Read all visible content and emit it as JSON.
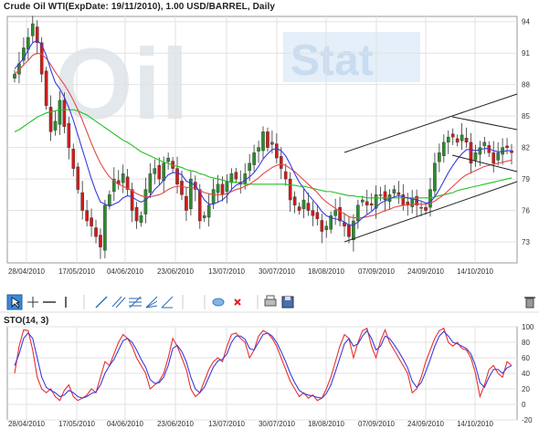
{
  "header": {
    "main_title": "Crude Oil WTI(ExpDate: 19/11/2010), 1.00 USD/BARREL, Daily",
    "sto_title": "STO(14, 3)"
  },
  "watermark": {
    "text1": "Oil",
    "text2": "Stat"
  },
  "toolbar": {
    "tools": [
      {
        "name": "pointer-tool-icon",
        "label": "pointer",
        "selected": true
      },
      {
        "name": "crosshair-tool-icon",
        "label": "crosshair"
      },
      {
        "name": "horizontal-line-tool-icon",
        "label": "horizontal line"
      },
      {
        "name": "vertical-line-tool-icon",
        "label": "vertical line"
      },
      {
        "name": "trend-line-tool-icon",
        "label": "trend line"
      },
      {
        "name": "parallel-lines-tool-icon",
        "label": "parallel lines"
      },
      {
        "name": "fibonacci-retracement-tool-icon",
        "label": "fibonacci"
      },
      {
        "name": "fan-tool-icon",
        "label": "fan"
      },
      {
        "name": "arc-tool-icon",
        "label": "arc"
      },
      {
        "name": "speech-bubble-icon",
        "label": "annotation"
      },
      {
        "name": "delete-x-icon",
        "label": "delete"
      },
      {
        "name": "print-icon",
        "label": "print"
      },
      {
        "name": "save-icon",
        "label": "save"
      },
      {
        "name": "trash-icon",
        "label": "clear"
      }
    ]
  },
  "chart_data": [
    {
      "type": "candlestick",
      "title": "Crude Oil WTI(ExpDate: 19/11/2010), 1.00 USD/BARREL, Daily",
      "x_tick_labels": [
        "28/04/2010",
        "17/05/2010",
        "04/06/2010",
        "23/06/2010",
        "13/07/2010",
        "30/07/2010",
        "18/08/2010",
        "07/09/2010",
        "24/09/2010",
        "14/10/2010"
      ],
      "y_ticks": [
        73,
        76,
        79,
        82,
        85,
        88,
        91,
        94
      ],
      "ylim": [
        71,
        94.5
      ],
      "candle_colors": {
        "up": "#2e8b2e",
        "down": "#d21b1b"
      },
      "series_colors": {
        "ma_fast": "#3a3adf",
        "ma_mid": "#e04a4a",
        "ma_slow": "#22c022"
      },
      "grid": true,
      "closes": [
        89.0,
        90.0,
        91.5,
        92.5,
        93.8,
        92.0,
        89.0,
        86.0,
        83.5,
        84.5,
        86.5,
        84.0,
        82.0,
        80.0,
        78.0,
        76.0,
        75.0,
        74.5,
        73.5,
        72.5,
        76.5,
        77.5,
        79.0,
        78.5,
        79.5,
        78.0,
        76.0,
        75.0,
        75.5,
        78.0,
        79.5,
        80.0,
        79.0,
        80.5,
        81.0,
        80.0,
        78.5,
        77.5,
        76.0,
        79.0,
        78.0,
        75.0,
        75.5,
        76.5,
        78.0,
        78.5,
        77.5,
        78.8,
        79.5,
        79.0,
        78.5,
        79.5,
        80.5,
        81.5,
        82.0,
        83.5,
        82.0,
        82.5,
        81.0,
        80.0,
        79.0,
        77.0,
        76.5,
        76.0,
        77.0,
        76.0,
        75.5,
        75.2,
        74.0,
        74.5,
        75.5,
        76.0,
        75.0,
        74.5,
        73.5,
        75.0,
        76.5,
        77.0,
        76.5,
        76.5,
        77.5,
        77.5,
        77.0,
        77.5,
        78.0,
        77.5,
        76.5,
        76.5,
        77.2,
        76.5,
        76.3,
        76.0,
        78.0,
        80.5,
        81.5,
        82.5,
        83.0,
        83.0,
        82.5,
        83.2,
        82.5,
        80.5,
        81.5,
        82.0,
        82.5,
        81.5,
        80.5,
        81.5,
        82.0,
        82.0,
        81.5
      ],
      "ma_fast": [
        89.5,
        90.0,
        90.5,
        91.3,
        92.0,
        92.2,
        91.8,
        90.8,
        89.4,
        88.2,
        87.6,
        86.8,
        85.8,
        84.6,
        83.2,
        81.8,
        80.4,
        79.0,
        77.8,
        76.8,
        76.6,
        76.4,
        76.6,
        76.8,
        77.2,
        77.4,
        77.3,
        77.0,
        76.8,
        77.0,
        77.4,
        78.0,
        78.4,
        78.9,
        79.4,
        79.6,
        79.6,
        79.4,
        78.8,
        78.6,
        78.4,
        77.7,
        77.0,
        76.6,
        76.6,
        76.8,
        77.0,
        77.4,
        78.0,
        78.4,
        78.6,
        78.9,
        79.2,
        79.6,
        80.2,
        80.9,
        81.4,
        81.8,
        81.9,
        81.7,
        81.2,
        80.4,
        79.5,
        78.7,
        78.1,
        77.5,
        77.0,
        76.5,
        75.9,
        75.5,
        75.3,
        75.2,
        75.1,
        74.9,
        74.6,
        74.6,
        74.9,
        75.3,
        75.6,
        75.9,
        76.3,
        76.7,
        76.9,
        77.1,
        77.3,
        77.4,
        77.3,
        77.2,
        77.1,
        77.0,
        76.9,
        76.7,
        76.8,
        77.3,
        78.0,
        78.8,
        79.6,
        80.3,
        80.9,
        81.4,
        81.8,
        81.8,
        81.7,
        81.8,
        81.9,
        81.9,
        81.7,
        81.6,
        81.6,
        81.7,
        81.7
      ],
      "ma_mid": [
        89.0,
        89.4,
        89.9,
        90.3,
        90.8,
        91.0,
        90.9,
        90.5,
        89.9,
        89.2,
        88.6,
        88.0,
        87.3,
        86.5,
        85.6,
        84.6,
        83.5,
        82.4,
        81.4,
        80.5,
        79.8,
        79.2,
        78.8,
        78.5,
        78.3,
        78.1,
        77.9,
        77.6,
        77.4,
        77.3,
        77.3,
        77.4,
        77.5,
        77.7,
        78.0,
        78.2,
        78.3,
        78.3,
        78.2,
        78.2,
        78.1,
        77.9,
        77.7,
        77.6,
        77.5,
        77.5,
        77.5,
        77.6,
        77.8,
        78.0,
        78.1,
        78.3,
        78.5,
        78.8,
        79.1,
        79.5,
        79.8,
        80.1,
        80.3,
        80.4,
        80.3,
        80.0,
        79.7,
        79.3,
        78.9,
        78.5,
        78.1,
        77.7,
        77.2,
        76.8,
        76.5,
        76.2,
        75.9,
        75.7,
        75.4,
        75.3,
        75.3,
        75.3,
        75.4,
        75.5,
        75.6,
        75.8,
        76.0,
        76.1,
        76.3,
        76.4,
        76.5,
        76.5,
        76.6,
        76.6,
        76.6,
        76.6,
        76.7,
        76.9,
        77.2,
        77.5,
        77.9,
        78.3,
        78.7,
        79.1,
        79.4,
        79.6,
        79.8,
        80.0,
        80.2,
        80.3,
        80.4,
        80.5,
        80.6,
        80.7,
        80.8
      ],
      "ma_slow": [
        83.5,
        83.7,
        84.0,
        84.3,
        84.6,
        84.9,
        85.1,
        85.3,
        85.4,
        85.5,
        85.6,
        85.6,
        85.6,
        85.6,
        85.5,
        85.3,
        85.1,
        84.8,
        84.5,
        84.2,
        83.9,
        83.6,
        83.3,
        83.0,
        82.7,
        82.5,
        82.2,
        81.9,
        81.6,
        81.4,
        81.2,
        81.0,
        80.8,
        80.6,
        80.5,
        80.3,
        80.2,
        80.1,
        79.9,
        79.8,
        79.7,
        79.5,
        79.4,
        79.2,
        79.1,
        79.0,
        78.9,
        78.8,
        78.7,
        78.7,
        78.6,
        78.5,
        78.5,
        78.5,
        78.5,
        78.5,
        78.5,
        78.5,
        78.5,
        78.5,
        78.5,
        78.4,
        78.4,
        78.3,
        78.3,
        78.2,
        78.1,
        78.0,
        77.9,
        77.8,
        77.8,
        77.7,
        77.6,
        77.5,
        77.4,
        77.4,
        77.3,
        77.3,
        77.2,
        77.2,
        77.2,
        77.2,
        77.2,
        77.2,
        77.2,
        77.2,
        77.2,
        77.2,
        77.2,
        77.2,
        77.2,
        77.2,
        77.2,
        77.3,
        77.4,
        77.5,
        77.6,
        77.7,
        77.9,
        78.0,
        78.1,
        78.2,
        78.3,
        78.4,
        78.5,
        78.6,
        78.7,
        78.8,
        78.9,
        79.0,
        79.1
      ]
    },
    {
      "type": "line",
      "title": "STO(14, 3)",
      "x_tick_labels": [
        "28/04/2010",
        "17/05/2010",
        "04/06/2010",
        "23/06/2010",
        "13/07/2010",
        "30/07/2010",
        "18/08/2010",
        "07/09/2010",
        "24/09/2010",
        "14/10/2010"
      ],
      "y_ticks": [
        100,
        80,
        60,
        40,
        20,
        0,
        -20
      ],
      "ylim": [
        -20,
        100
      ],
      "series": [
        {
          "color": "#e83030",
          "values": [
            40,
            75,
            96,
            95,
            70,
            35,
            20,
            15,
            20,
            10,
            5,
            18,
            25,
            10,
            5,
            8,
            12,
            20,
            15,
            35,
            55,
            50,
            65,
            80,
            90,
            85,
            75,
            60,
            50,
            40,
            20,
            25,
            30,
            40,
            60,
            85,
            75,
            60,
            45,
            20,
            10,
            15,
            30,
            45,
            55,
            60,
            55,
            75,
            90,
            92,
            85,
            80,
            60,
            70,
            88,
            95,
            92,
            85,
            75,
            60,
            45,
            30,
            20,
            10,
            15,
            8,
            12,
            5,
            8,
            20,
            35,
            55,
            75,
            90,
            85,
            60,
            80,
            95,
            98,
            75,
            60,
            82,
            96,
            80,
            70,
            60,
            50,
            40,
            15,
            20,
            35,
            55,
            70,
            85,
            95,
            98,
            80,
            75,
            80,
            72,
            70,
            60,
            40,
            10,
            25,
            45,
            50,
            40,
            35,
            55,
            50
          ]
        },
        {
          "color": "#3c3cde",
          "values": [
            50,
            65,
            85,
            92,
            85,
            60,
            35,
            22,
            18,
            15,
            10,
            12,
            18,
            15,
            10,
            8,
            10,
            14,
            16,
            25,
            40,
            50,
            58,
            70,
            82,
            85,
            80,
            70,
            58,
            48,
            32,
            27,
            28,
            35,
            50,
            72,
            76,
            68,
            55,
            35,
            20,
            15,
            22,
            35,
            48,
            56,
            58,
            65,
            80,
            88,
            88,
            84,
            72,
            70,
            80,
            90,
            92,
            88,
            80,
            68,
            55,
            40,
            28,
            18,
            14,
            12,
            11,
            9,
            8,
            14,
            25,
            42,
            60,
            78,
            85,
            75,
            78,
            88,
            95,
            85,
            70,
            75,
            88,
            85,
            77,
            68,
            58,
            47,
            30,
            22,
            28,
            42,
            58,
            75,
            88,
            94,
            88,
            80,
            78,
            75,
            72,
            65,
            50,
            28,
            22,
            35,
            45,
            45,
            40,
            47,
            50
          ]
        }
      ]
    }
  ]
}
